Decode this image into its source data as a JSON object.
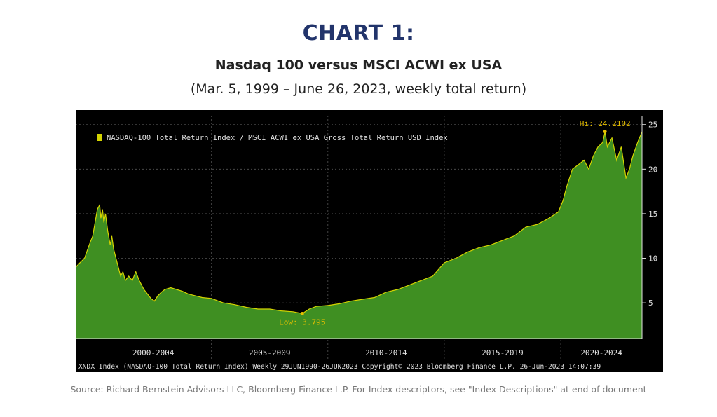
{
  "heading": "CHART 1:",
  "subtitle": "Nasdaq 100 versus MSCI ACWI ex USA",
  "date_range": "(Mar. 5, 1999 – June 26, 2023, weekly total return)",
  "source": "Source: Richard Bernstein Advisors LLC, Bloomberg Finance L.P. For Index descriptors, see \"Index Descriptions\" at end of document",
  "colors": {
    "background": "#000000",
    "area_fill": "#3f8f22",
    "line": "#d4d400",
    "grid": "#555555",
    "axis_text": "#e0e0e0",
    "annotation": "#e8c000"
  },
  "chart_data": {
    "type": "area",
    "title": "",
    "xlabel": "",
    "ylabel": "",
    "grid": true,
    "legend_position": "top-left",
    "series_name": "NASDAQ-100 Total Return Index / MSCI ACWI ex USA Gross Total Return USD Index",
    "xlim": [
      1999.17,
      2023.49
    ],
    "ylim": [
      1,
      26
    ],
    "y_ticks": [
      5,
      10,
      15,
      20,
      25
    ],
    "x_periods": [
      {
        "label": "2000-2004",
        "start": 2000,
        "end": 2005
      },
      {
        "label": "2005-2009",
        "start": 2005,
        "end": 2010
      },
      {
        "label": "2010-2014",
        "start": 2010,
        "end": 2015
      },
      {
        "label": "2015-2019",
        "start": 2015,
        "end": 2020
      },
      {
        "label": "2020-2024",
        "start": 2020,
        "end": 2025
      }
    ],
    "annotations": {
      "high": {
        "label": "Hi: 24.2102",
        "x": 2021.9,
        "y": 24.21
      },
      "low": {
        "label": "Low: 3.795",
        "x": 2008.9,
        "y": 3.795
      }
    },
    "footer": "XNDX Index (NASDAQ-100 Total Return Index)  Weekly 29JUN1990-26JUN2023  Copyright© 2023 Bloomberg Finance L.P.  26-Jun-2023 14:07:39",
    "x": [
      1999.17,
      1999.35,
      1999.55,
      1999.75,
      1999.9,
      2000.0,
      2000.1,
      2000.2,
      2000.25,
      2000.32,
      2000.38,
      2000.45,
      2000.55,
      2000.65,
      2000.72,
      2000.8,
      2000.9,
      2001.0,
      2001.1,
      2001.2,
      2001.3,
      2001.45,
      2001.6,
      2001.75,
      2001.9,
      2002.0,
      2002.1,
      2002.25,
      2002.4,
      2002.55,
      2002.7,
      2002.85,
      2003.0,
      2003.25,
      2003.5,
      2003.75,
      2004.0,
      2004.3,
      2004.6,
      2005.0,
      2005.5,
      2006.0,
      2006.5,
      2007.0,
      2007.5,
      2008.0,
      2008.5,
      2008.9,
      2009.2,
      2009.5,
      2010.0,
      2010.5,
      2011.0,
      2011.5,
      2012.0,
      2012.5,
      2013.0,
      2013.5,
      2014.0,
      2014.5,
      2015.0,
      2015.5,
      2016.0,
      2016.5,
      2017.0,
      2017.5,
      2018.0,
      2018.5,
      2019.0,
      2019.5,
      2019.9,
      2020.1,
      2020.25,
      2020.5,
      2020.75,
      2021.0,
      2021.2,
      2021.4,
      2021.6,
      2021.8,
      2021.9,
      2022.0,
      2022.2,
      2022.4,
      2022.6,
      2022.8,
      2022.95,
      2023.1,
      2023.3,
      2023.49
    ],
    "y": [
      9.0,
      9.5,
      10.0,
      11.5,
      12.5,
      14.0,
      15.5,
      16.0,
      14.5,
      15.5,
      14.0,
      15.0,
      13.0,
      11.5,
      12.5,
      11.0,
      10.0,
      9.0,
      8.0,
      8.5,
      7.5,
      8.0,
      7.5,
      8.5,
      7.5,
      7.0,
      6.5,
      6.0,
      5.5,
      5.2,
      5.8,
      6.2,
      6.5,
      6.7,
      6.5,
      6.3,
      6.0,
      5.8,
      5.6,
      5.5,
      5.0,
      4.8,
      4.5,
      4.3,
      4.3,
      4.1,
      4.0,
      3.8,
      4.3,
      4.6,
      4.7,
      4.9,
      5.2,
      5.4,
      5.6,
      6.2,
      6.5,
      7.0,
      7.5,
      8.0,
      9.5,
      10.0,
      10.7,
      11.2,
      11.5,
      12.0,
      12.5,
      13.5,
      13.8,
      14.5,
      15.2,
      16.5,
      18.0,
      20.0,
      20.5,
      21.0,
      20.0,
      21.5,
      22.5,
      23.0,
      24.2,
      22.5,
      23.5,
      21.0,
      22.5,
      19.0,
      20.0,
      21.5,
      23.0,
      24.2
    ]
  }
}
